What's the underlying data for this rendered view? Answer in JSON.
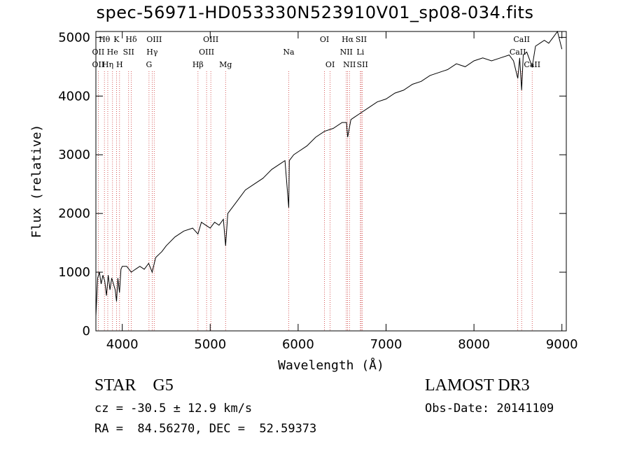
{
  "chart_data": {
    "type": "line",
    "title": "spec-56971-HD053330N523910V01_sp08-034.fits",
    "xlabel": "Wavelength (Å)",
    "ylabel": "Flux (relative)",
    "xlim": [
      3700,
      9050
    ],
    "ylim": [
      0,
      5100
    ],
    "x_ticks": [
      4000,
      5000,
      6000,
      7000,
      8000,
      9000
    ],
    "y_ticks": [
      0,
      1000,
      2000,
      3000,
      4000,
      5000
    ],
    "grid": false,
    "series": [
      {
        "name": "spectrum",
        "x": [
          3700,
          3720,
          3740,
          3760,
          3780,
          3800,
          3820,
          3840,
          3860,
          3880,
          3900,
          3920,
          3935,
          3950,
          3968,
          3985,
          4000,
          4050,
          4102,
          4150,
          4200,
          4250,
          4300,
          4340,
          4380,
          4450,
          4500,
          4600,
          4700,
          4800,
          4861,
          4900,
          4950,
          5000,
          5050,
          5100,
          5150,
          5175,
          5200,
          5300,
          5400,
          5500,
          5600,
          5700,
          5800,
          5850,
          5893,
          5900,
          5950,
          6000,
          6100,
          6200,
          6300,
          6400,
          6500,
          6550,
          6563,
          6600,
          6650,
          6700,
          6800,
          6900,
          7000,
          7100,
          7200,
          7300,
          7400,
          7500,
          7600,
          7700,
          7800,
          7900,
          8000,
          8100,
          8200,
          8300,
          8400,
          8450,
          8498,
          8520,
          8542,
          8560,
          8600,
          8662,
          8700,
          8750,
          8800,
          8850,
          8900,
          8950,
          9000
        ],
        "y": [
          250,
          900,
          1000,
          800,
          950,
          850,
          600,
          950,
          700,
          900,
          800,
          700,
          500,
          900,
          650,
          1050,
          1100,
          1100,
          1000,
          1050,
          1100,
          1050,
          1150,
          1000,
          1250,
          1350,
          1450,
          1600,
          1700,
          1750,
          1650,
          1850,
          1800,
          1750,
          1850,
          1800,
          1900,
          1450,
          2000,
          2200,
          2400,
          2500,
          2600,
          2750,
          2850,
          2900,
          2100,
          2900,
          3000,
          3050,
          3150,
          3300,
          3400,
          3450,
          3550,
          3550,
          3300,
          3600,
          3650,
          3700,
          3800,
          3900,
          3950,
          4050,
          4100,
          4200,
          4250,
          4350,
          4400,
          4450,
          4550,
          4500,
          4600,
          4650,
          4600,
          4650,
          4700,
          4600,
          4300,
          4650,
          4100,
          4700,
          4750,
          4500,
          4850,
          4900,
          4950,
          4900,
          5000,
          5100,
          4800
        ]
      }
    ],
    "line_markers": [
      {
        "label": "Hθ",
        "x": 3797,
        "row": 0
      },
      {
        "label": "OII",
        "x": 3727,
        "row": 1
      },
      {
        "label": "OII",
        "x": 3727,
        "row": 2
      },
      {
        "label": "He",
        "x": 3889,
        "row": 1
      },
      {
        "label": "Hη",
        "x": 3835,
        "row": 2
      },
      {
        "label": "K",
        "x": 3934,
        "row": 0
      },
      {
        "label": "SII",
        "x": 4072,
        "row": 1
      },
      {
        "label": "H",
        "x": 3969,
        "row": 2
      },
      {
        "label": "Hδ",
        "x": 4102,
        "row": 0
      },
      {
        "label": "OIII",
        "x": 4363,
        "row": 0
      },
      {
        "label": "Hγ",
        "x": 4340,
        "row": 1
      },
      {
        "label": "G",
        "x": 4304,
        "row": 2
      },
      {
        "label": "OIII",
        "x": 5007,
        "row": 0
      },
      {
        "label": "OIII",
        "x": 4959,
        "row": 1
      },
      {
        "label": "Hβ",
        "x": 4861,
        "row": 2
      },
      {
        "label": "Mg",
        "x": 5175,
        "row": 2
      },
      {
        "label": "Na",
        "x": 5893,
        "row": 1
      },
      {
        "label": "OI",
        "x": 6300,
        "row": 0
      },
      {
        "label": "OI",
        "x": 6364,
        "row": 2
      },
      {
        "label": "Hα",
        "x": 6563,
        "row": 0
      },
      {
        "label": "NII",
        "x": 6548,
        "row": 1
      },
      {
        "label": "NII",
        "x": 6584,
        "row": 2
      },
      {
        "label": "SII",
        "x": 6717,
        "row": 0
      },
      {
        "label": "Li",
        "x": 6708,
        "row": 1
      },
      {
        "label": "SII",
        "x": 6731,
        "row": 2
      },
      {
        "label": "CaII",
        "x": 8542,
        "row": 0
      },
      {
        "label": "CaII",
        "x": 8498,
        "row": 1
      },
      {
        "label": "CaII",
        "x": 8662,
        "row": 2
      }
    ]
  },
  "info": {
    "object_class": "STAR    G5",
    "survey": "LAMOST DR3",
    "redshift": "cz = -30.5 ± 12.9 km/s",
    "obs_date": "Obs-Date: 20141109",
    "coords": "RA =  84.56270, DEC =  52.59373"
  },
  "colors": {
    "spectrum": "#000000",
    "marker": "#cc3333",
    "axis": "#000000"
  }
}
